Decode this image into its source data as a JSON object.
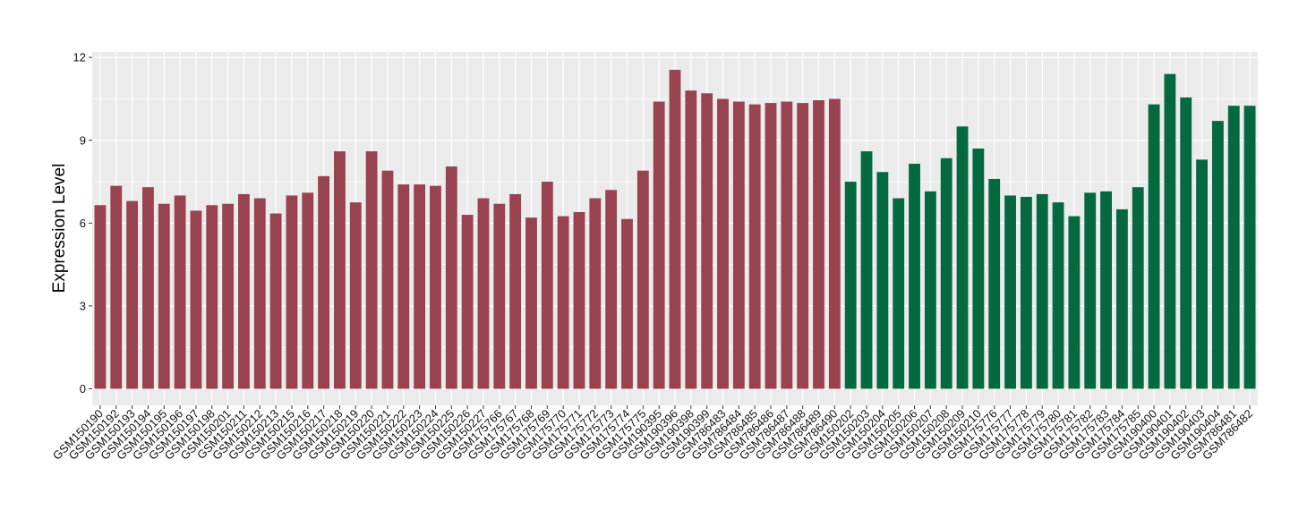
{
  "chart_data": {
    "type": "bar",
    "ylabel": "Expression Level",
    "xlabel": "",
    "ylim": [
      -0.6,
      12.2
    ],
    "yticks": [
      0,
      3,
      6,
      9,
      12
    ],
    "grid": true,
    "legend": "none",
    "colors": {
      "group1": "#98434f",
      "group2": "#05693f",
      "panel": "#ebebeb",
      "grid": "#ffffff"
    },
    "categories": [
      "GSM150190",
      "GSM150192",
      "GSM150193",
      "GSM150194",
      "GSM150195",
      "GSM150196",
      "GSM150197",
      "GSM150198",
      "GSM150201",
      "GSM150211",
      "GSM150212",
      "GSM150213",
      "GSM150215",
      "GSM150216",
      "GSM150217",
      "GSM150218",
      "GSM150219",
      "GSM150220",
      "GSM150221",
      "GSM150222",
      "GSM150223",
      "GSM150224",
      "GSM150225",
      "GSM150226",
      "GSM150227",
      "GSM175766",
      "GSM175767",
      "GSM175768",
      "GSM175769",
      "GSM175770",
      "GSM175771",
      "GSM175772",
      "GSM175773",
      "GSM175774",
      "GSM175775",
      "GSM190395",
      "GSM190396",
      "GSM190398",
      "GSM190399",
      "GSM786483",
      "GSM786484",
      "GSM786485",
      "GSM786486",
      "GSM786487",
      "GSM786488",
      "GSM786489",
      "GSM786490",
      "GSM150202",
      "GSM150203",
      "GSM150204",
      "GSM150205",
      "GSM150206",
      "GSM150207",
      "GSM150208",
      "GSM150209",
      "GSM150210",
      "GSM175776",
      "GSM175777",
      "GSM175778",
      "GSM175779",
      "GSM175780",
      "GSM175781",
      "GSM175782",
      "GSM175783",
      "GSM175784",
      "GSM175785",
      "GSM190400",
      "GSM190401",
      "GSM190402",
      "GSM190403",
      "GSM190404",
      "GSM786481",
      "GSM786482"
    ],
    "values": [
      6.65,
      7.35,
      6.8,
      7.3,
      6.7,
      7.0,
      6.45,
      6.65,
      6.7,
      7.05,
      6.9,
      6.35,
      7.0,
      7.1,
      7.7,
      8.6,
      6.75,
      8.6,
      7.9,
      7.4,
      7.4,
      7.35,
      8.05,
      6.3,
      6.9,
      6.7,
      7.05,
      6.2,
      7.5,
      6.25,
      6.4,
      6.9,
      7.2,
      6.15,
      7.9,
      10.4,
      11.55,
      10.8,
      10.7,
      10.5,
      10.4,
      10.3,
      10.35,
      10.4,
      10.35,
      10.45,
      10.5,
      7.5,
      8.6,
      7.85,
      6.9,
      8.15,
      7.15,
      8.35,
      9.5,
      8.7,
      7.6,
      7.0,
      6.95,
      7.05,
      6.75,
      6.25,
      7.1,
      7.15,
      6.5,
      7.3,
      10.3,
      11.4,
      10.55,
      8.3,
      9.7,
      10.25,
      10.25
    ],
    "groups": [
      1,
      1,
      1,
      1,
      1,
      1,
      1,
      1,
      1,
      1,
      1,
      1,
      1,
      1,
      1,
      1,
      1,
      1,
      1,
      1,
      1,
      1,
      1,
      1,
      1,
      1,
      1,
      1,
      1,
      1,
      1,
      1,
      1,
      1,
      1,
      1,
      1,
      1,
      1,
      1,
      1,
      1,
      1,
      1,
      1,
      1,
      1,
      2,
      2,
      2,
      2,
      2,
      2,
      2,
      2,
      2,
      2,
      2,
      2,
      2,
      2,
      2,
      2,
      2,
      2,
      2,
      2,
      2,
      2,
      2,
      2,
      2,
      2
    ]
  }
}
